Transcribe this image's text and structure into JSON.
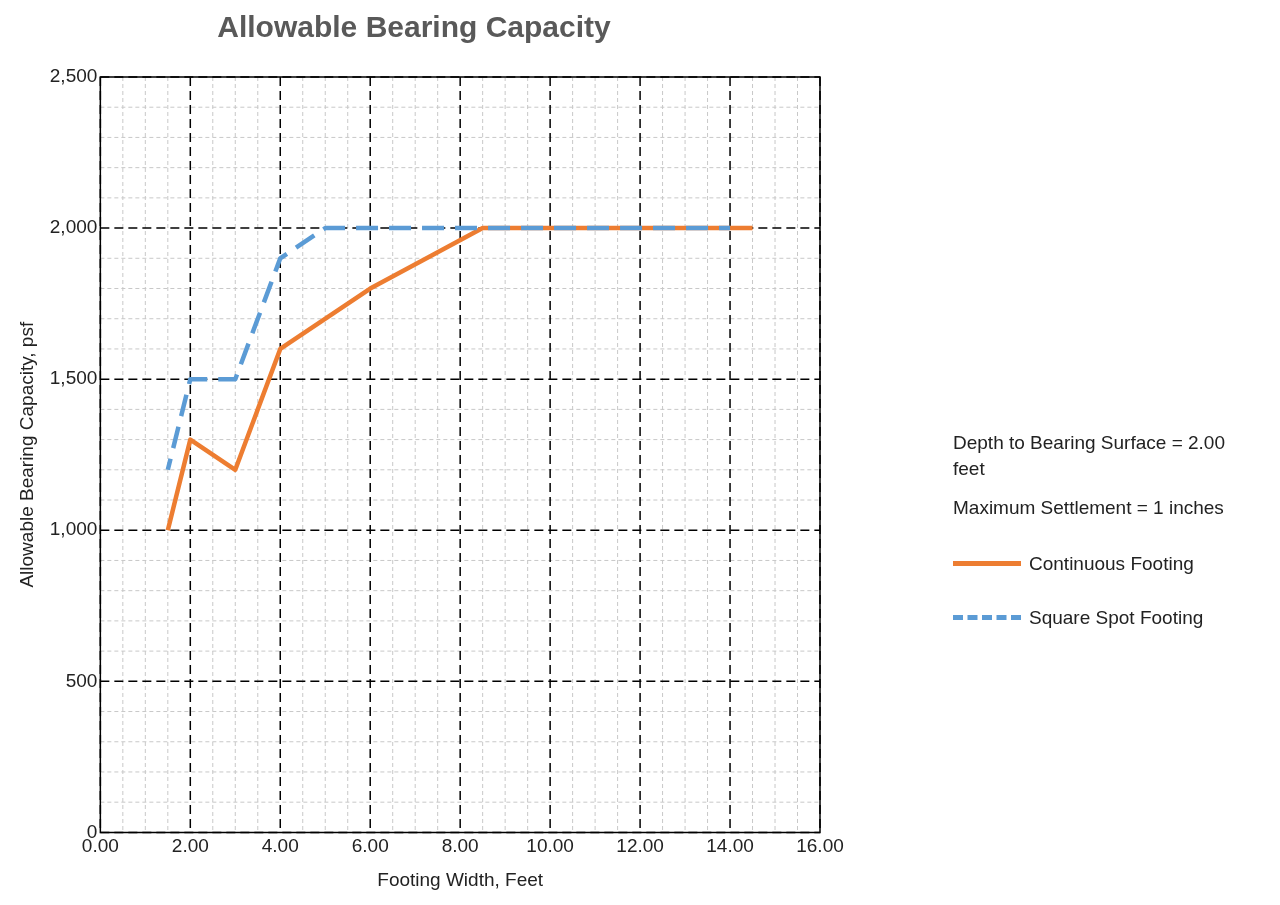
{
  "chart_data": {
    "type": "line",
    "title": "Allowable Bearing Capacity",
    "xlabel": "Footing Width, Feet",
    "ylabel": "Allowable Bearing Capacity, psf",
    "annotations": [
      "Depth to Bearing Surface = 2.00 feet",
      "Maximum Settlement = 1 inches"
    ],
    "series": [
      {
        "name": "Continuous Footing",
        "color": "#ed7d31",
        "line_style": "solid",
        "x": [
          1.5,
          2,
          3,
          4,
          6,
          8.5,
          14.5
        ],
        "values": [
          1000,
          1300,
          1200,
          1600,
          1800,
          2000,
          2000
        ]
      },
      {
        "name": "Square Spot Footing",
        "color": "#5b9bd5",
        "line_style": "dashed",
        "x": [
          1.5,
          2,
          3,
          4,
          5,
          14
        ],
        "values": [
          1200,
          1500,
          1500,
          1900,
          2000,
          2000
        ]
      }
    ],
    "xlim": [
      0,
      16
    ],
    "ylim": [
      0,
      2500
    ],
    "xticks": [
      {
        "value": 0,
        "label": "0.00"
      },
      {
        "value": 0.5,
        "label": null
      },
      {
        "value": 1,
        "label": null
      },
      {
        "value": 1.5,
        "label": null
      },
      {
        "value": 2,
        "label": "2.00"
      },
      {
        "value": 2.5,
        "label": null
      },
      {
        "value": 3,
        "label": null
      },
      {
        "value": 3.5,
        "label": null
      },
      {
        "value": 4,
        "label": "4.00"
      },
      {
        "value": 4.5,
        "label": null
      },
      {
        "value": 5,
        "label": null
      },
      {
        "value": 5.5,
        "label": null
      },
      {
        "value": 6,
        "label": "6.00"
      },
      {
        "value": 6.5,
        "label": null
      },
      {
        "value": 7,
        "label": null
      },
      {
        "value": 7.5,
        "label": null
      },
      {
        "value": 8,
        "label": "8.00"
      },
      {
        "value": 8.5,
        "label": null
      },
      {
        "value": 9,
        "label": null
      },
      {
        "value": 9.5,
        "label": null
      },
      {
        "value": 10,
        "label": "10.00"
      },
      {
        "value": 10.5,
        "label": null
      },
      {
        "value": 11,
        "label": null
      },
      {
        "value": 11.5,
        "label": null
      },
      {
        "value": 12,
        "label": "12.00"
      },
      {
        "value": 12.5,
        "label": null
      },
      {
        "value": 13,
        "label": null
      },
      {
        "value": 13.5,
        "label": null
      },
      {
        "value": 14,
        "label": "14.00"
      },
      {
        "value": 14.5,
        "label": null
      },
      {
        "value": 15,
        "label": null
      },
      {
        "value": 15.5,
        "label": null
      },
      {
        "value": 16,
        "label": "16.00"
      }
    ],
    "yticks": [
      0,
      {
        "value": 100,
        "label": null
      },
      {
        "value": 200,
        "label": null
      },
      {
        "value": 300,
        "label": null
      },
      {
        "value": 400,
        "label": null
      },
      500,
      {
        "value": 600,
        "label": null
      },
      {
        "value": 700,
        "label": null
      },
      {
        "value": 800,
        "label": null
      },
      {
        "value": 900,
        "label": null
      },
      {
        "value": 1000,
        "label": "1,000"
      },
      {
        "value": 1100,
        "label": null
      },
      {
        "value": 1200,
        "label": null
      },
      {
        "value": 1300,
        "label": null
      },
      {
        "value": 1400,
        "label": null
      },
      {
        "value": 1500,
        "label": "1,500"
      },
      {
        "value": 1600,
        "label": null
      },
      {
        "value": 1700,
        "label": null
      },
      {
        "value": 1800,
        "label": null
      },
      {
        "value": 1900,
        "label": null
      },
      {
        "value": 2000,
        "label": "2,000"
      },
      {
        "value": 2100,
        "label": null
      },
      {
        "value": 2200,
        "label": null
      },
      {
        "value": 2300,
        "label": null
      },
      {
        "value": 2400,
        "label": null
      },
      {
        "value": 2500,
        "label": "2,500"
      }
    ],
    "grid": true,
    "legend": "right",
    "marker": "none"
  }
}
